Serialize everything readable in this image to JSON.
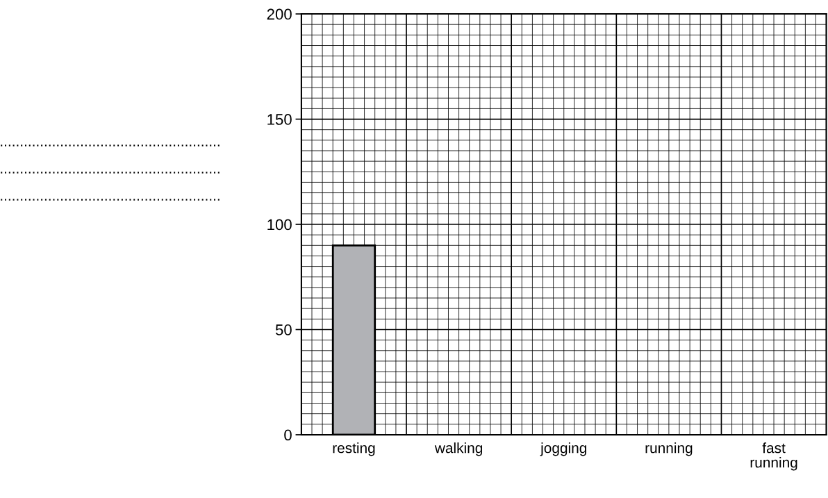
{
  "chart_data": {
    "type": "bar",
    "categories": [
      "resting",
      "walking",
      "jogging",
      "running",
      "fast\nrunning"
    ],
    "values": [
      90,
      null,
      null,
      null,
      null
    ],
    "color": "#b1b2b6",
    "ylabel": ".......................................................\n.......................................................\n.......................................................",
    "ylim": [
      0,
      200
    ],
    "yticks": [
      0,
      50,
      100,
      150,
      200
    ],
    "grid": true
  }
}
